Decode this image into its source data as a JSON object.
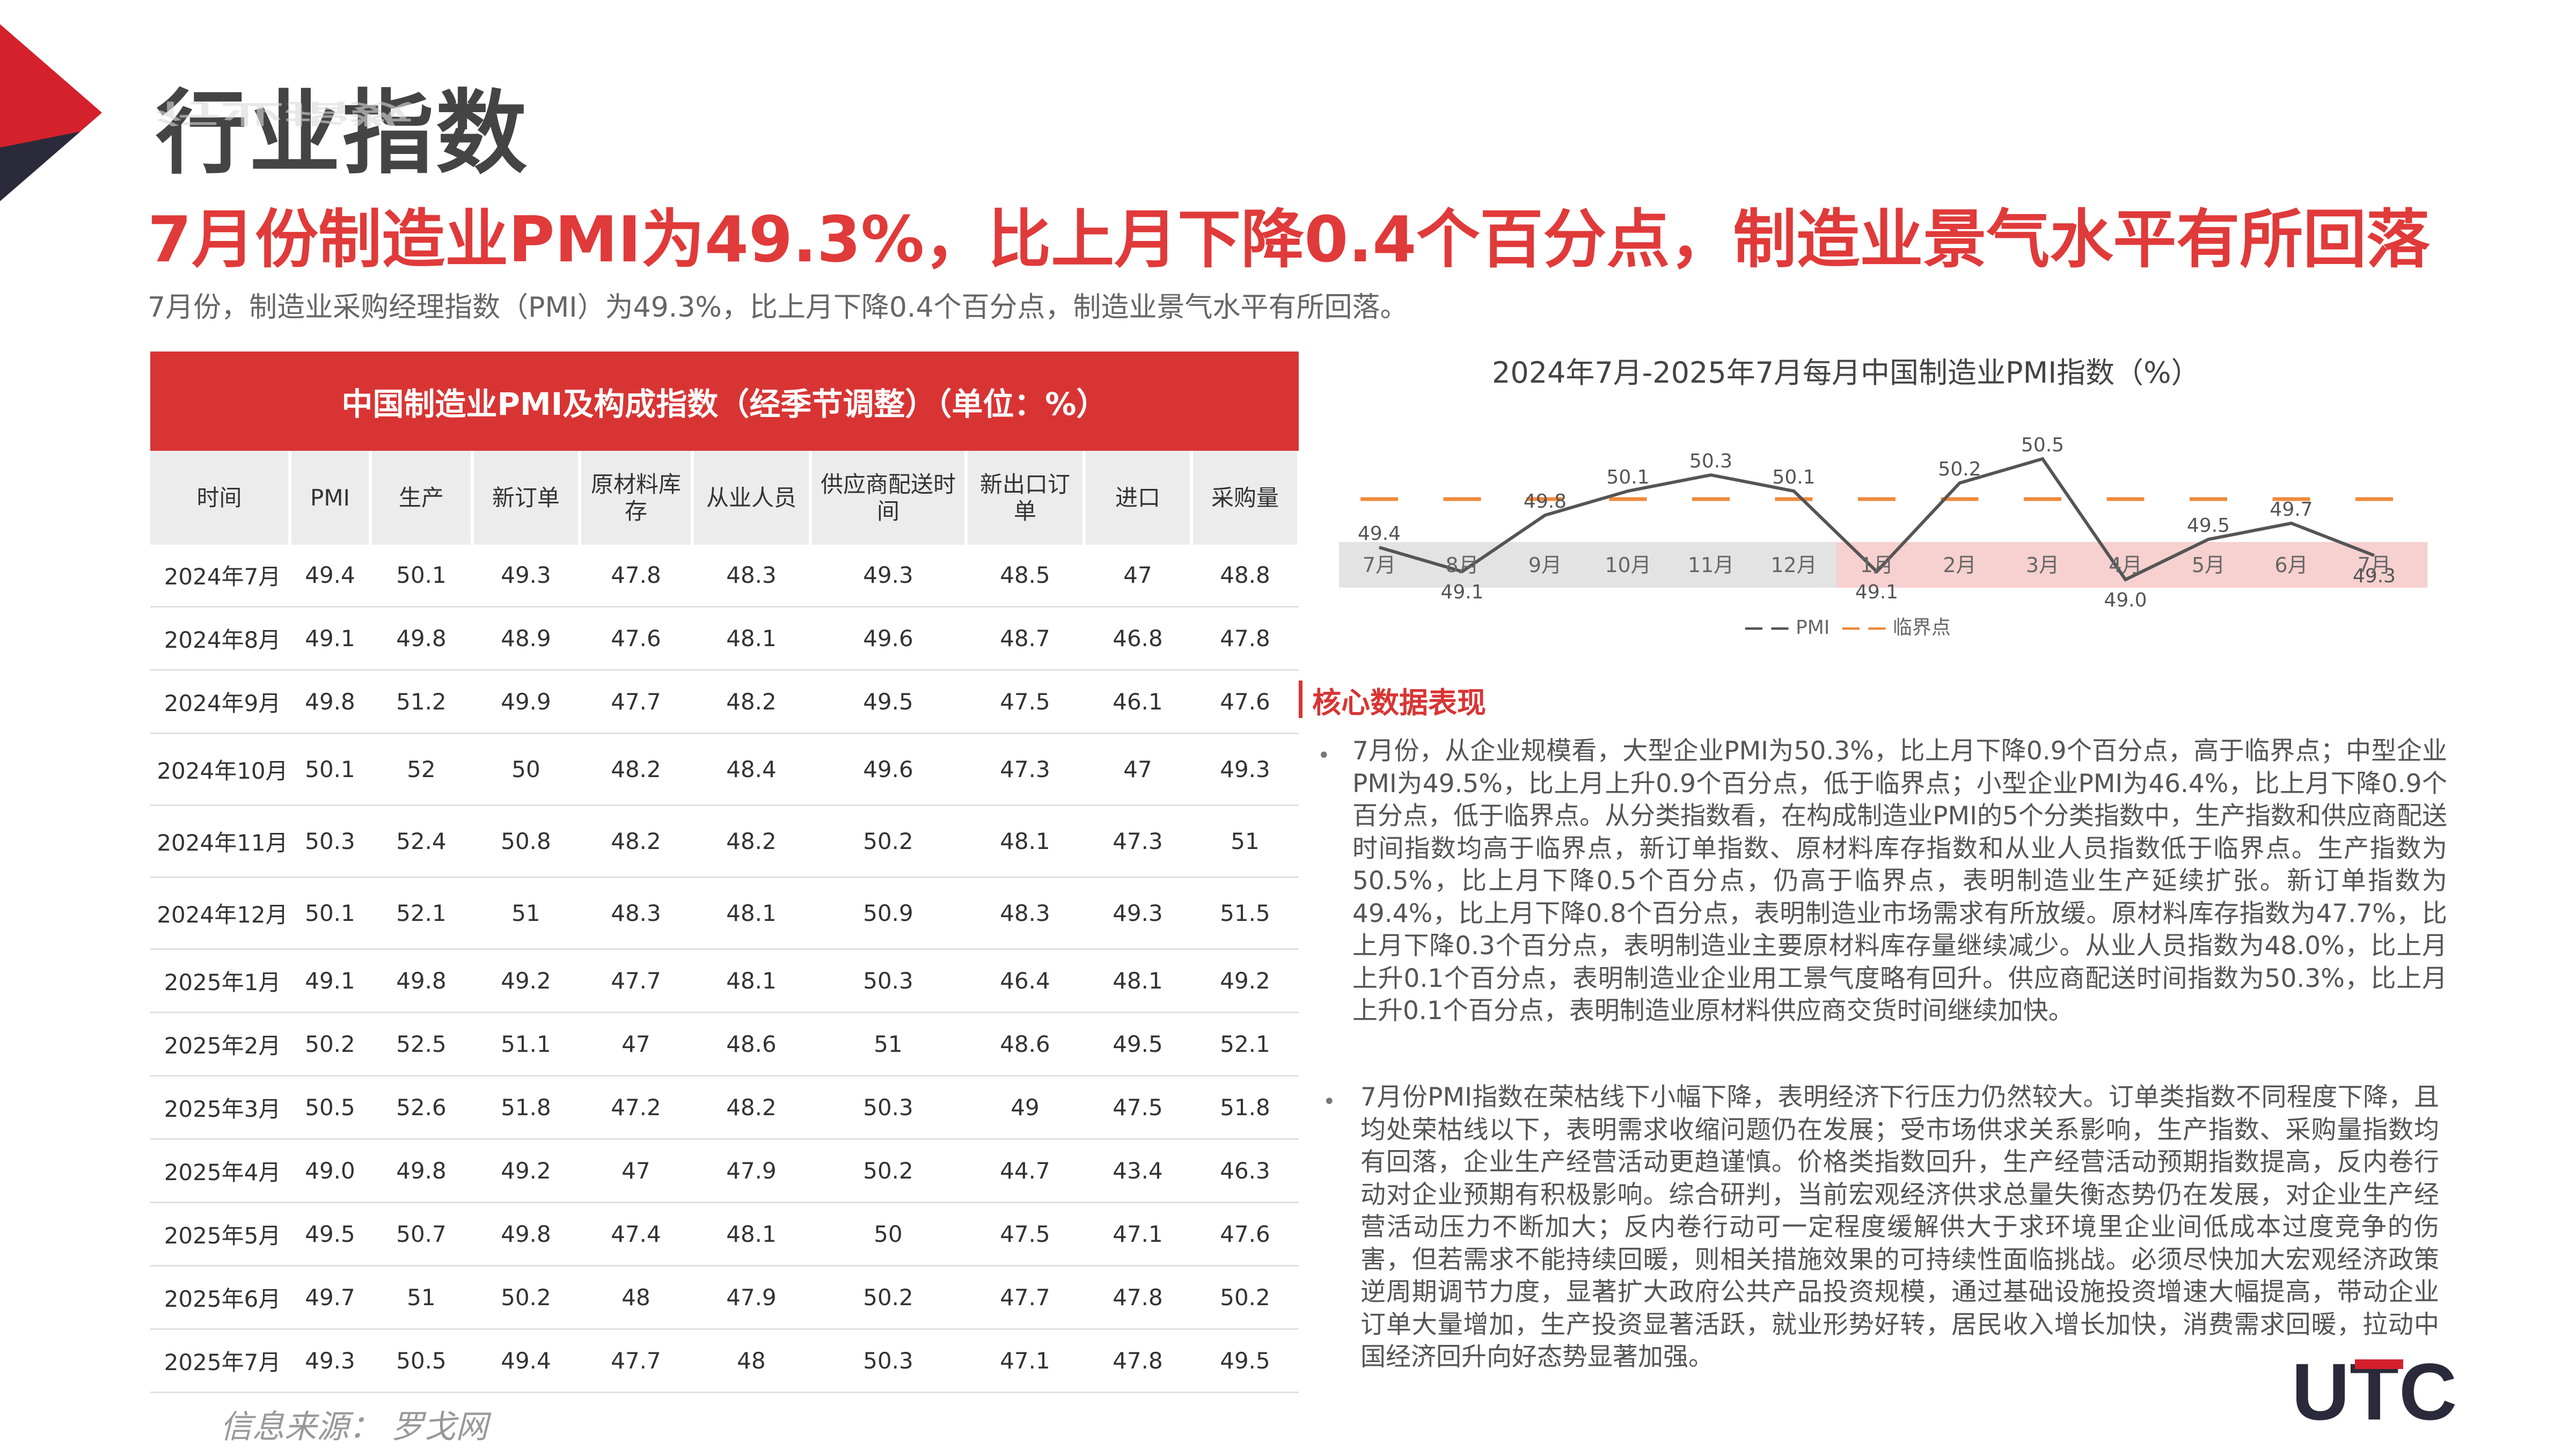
{
  "page": {
    "title": "行业指数",
    "headline": "7月份制造业PMI为49.3%，比上月下降0.4个百分点，制造业景气水平有所回落",
    "subhead": "7月份，制造业采购经理指数（PMI）为49.3%，比上月下降0.4个百分点，制造业景气水平有所回落。",
    "source": "信息来源：  罗戈网",
    "logo_text": "UTC"
  },
  "table": {
    "title": "中国制造业PMI及构成指数（经季节调整）（单位：%）",
    "columns": [
      "时间",
      "PMI",
      "生产",
      "新订单",
      "原材料库存",
      "从业人员",
      "供应商配送时间",
      "新出口订单",
      "进口",
      "采购量"
    ],
    "rows": [
      [
        "2024年7月",
        "49.4",
        "50.1",
        "49.3",
        "47.8",
        "48.3",
        "49.3",
        "48.5",
        "47",
        "48.8"
      ],
      [
        "2024年8月",
        "49.1",
        "49.8",
        "48.9",
        "47.6",
        "48.1",
        "49.6",
        "48.7",
        "46.8",
        "47.8"
      ],
      [
        "2024年9月",
        "49.8",
        "51.2",
        "49.9",
        "47.7",
        "48.2",
        "49.5",
        "47.5",
        "46.1",
        "47.6"
      ],
      [
        "2024年10月",
        "50.1",
        "52",
        "50",
        "48.2",
        "48.4",
        "49.6",
        "47.3",
        "47",
        "49.3"
      ],
      [
        "2024年11月",
        "50.3",
        "52.4",
        "50.8",
        "48.2",
        "48.2",
        "50.2",
        "48.1",
        "47.3",
        "51"
      ],
      [
        "2024年12月",
        "50.1",
        "52.1",
        "51",
        "48.3",
        "48.1",
        "50.9",
        "48.3",
        "49.3",
        "51.5"
      ],
      [
        "2025年1月",
        "49.1",
        "49.8",
        "49.2",
        "47.7",
        "48.1",
        "50.3",
        "46.4",
        "48.1",
        "49.2"
      ],
      [
        "2025年2月",
        "50.2",
        "52.5",
        "51.1",
        "47",
        "48.6",
        "51",
        "48.6",
        "49.5",
        "52.1"
      ],
      [
        "2025年3月",
        "50.5",
        "52.6",
        "51.8",
        "47.2",
        "48.2",
        "50.3",
        "49",
        "47.5",
        "51.8"
      ],
      [
        "2025年4月",
        "49.0",
        "49.8",
        "49.2",
        "47",
        "47.9",
        "50.2",
        "44.7",
        "43.4",
        "46.3"
      ],
      [
        "2025年5月",
        "49.5",
        "50.7",
        "49.8",
        "47.4",
        "48.1",
        "50",
        "47.5",
        "47.1",
        "47.6"
      ],
      [
        "2025年6月",
        "49.7",
        "51",
        "50.2",
        "48",
        "47.9",
        "50.2",
        "47.7",
        "47.8",
        "50.2"
      ],
      [
        "2025年7月",
        "49.3",
        "50.5",
        "49.4",
        "47.7",
        "48",
        "50.3",
        "47.1",
        "47.8",
        "49.5"
      ]
    ]
  },
  "chart_data": {
    "type": "line",
    "title": "2024年7月-2025年7月每月中国制造业PMI指数（%）",
    "categories": [
      "7月",
      "8月",
      "9月",
      "10月",
      "11月",
      "12月",
      "1月",
      "2月",
      "3月",
      "4月",
      "5月",
      "6月",
      "7月"
    ],
    "series": [
      {
        "name": "PMI",
        "values": [
          49.4,
          49.1,
          49.8,
          50.1,
          50.3,
          50.1,
          49.1,
          50.2,
          50.5,
          49.0,
          49.5,
          49.7,
          49.3
        ],
        "color": "#555555"
      },
      {
        "name": "临界点",
        "values": [
          50,
          50,
          50,
          50,
          50,
          50,
          50,
          50,
          50,
          50,
          50,
          50,
          50
        ],
        "color": "#f08a3c"
      }
    ],
    "value_labels": [
      "49.4",
      "49.1",
      "49.8",
      "50.1",
      "50.3",
      "50.1",
      "49.1",
      "50.2",
      "50.5",
      "49.0",
      "49.5",
      "49.7",
      "49.3"
    ],
    "highlight_categories_from": 6,
    "highlight_color": "#f7d0d0",
    "legend": "bottom"
  },
  "core": {
    "title": "核心数据表现",
    "para1": "7月份，从企业规模看，大型企业PMI为50.3%，比上月下降0.9个百分点，高于临界点；中型企业PMI为49.5%，比上月上升0.9个百分点，低于临界点；小型企业PMI为46.4%，比上月下降0.9个百分点，低于临界点。从分类指数看，在构成制造业PMI的5个分类指数中，生产指数和供应商配送时间指数均高于临界点，新订单指数、原材料库存指数和从业人员指数低于临界点。生产指数为50.5%，比上月下降0.5个百分点，仍高于临界点，表明制造业生产延续扩张。新订单指数为49.4%，比上月下降0.8个百分点，表明制造业市场需求有所放缓。原材料库存指数为47.7%，比上月下降0.3个百分点，表明制造业主要原材料库存量继续减少。从业人员指数为48.0%，比上月上升0.1个百分点，表明制造业企业用工景气度略有回升。供应商配送时间指数为50.3%，比上月上升0.1个百分点，表明制造业原材料供应商交货时间继续加快。",
    "para2": "7月份PMI指数在荣枯线下小幅下降，表明经济下行压力仍然较大。订单类指数不同程度下降，且均处荣枯线以下，表明需求收缩问题仍在发展；受市场供求关系影响，生产指数、采购量指数均有回落，企业生产经营活动更趋谨慎。价格类指数回升，生产经营活动预期指数提高，反内卷行动对企业预期有积极影响。综合研判，当前宏观经济供求总量失衡态势仍在发展，对企业生产经营活动压力不断加大；反内卷行动可一定程度缓解供大于求环境里企业间低成本过度竞争的伤害，但若需求不能持续回暖，则相关措施效果的可持续性面临挑战。必须尽快加大宏观经济政策逆周期调节力度，显著扩大政府公共产品投资规模，通过基础设施投资增速大幅提高，带动企业订单大量增加，生产投资显著活跃，就业形势好转，居民收入增长加快，消费需求回暖，拉动中国经济回升向好态势显著加强。"
  }
}
